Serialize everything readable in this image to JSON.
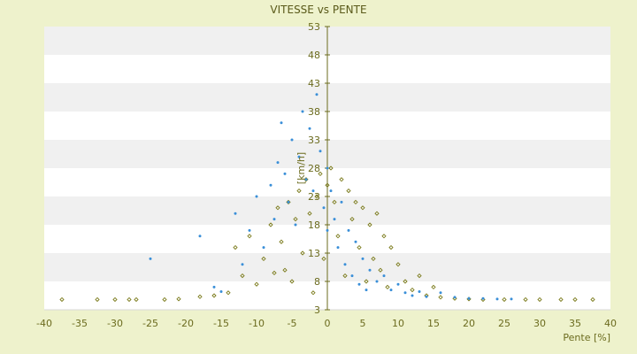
{
  "chart_data": {
    "type": "scatter",
    "title": "VITESSE vs PENTE",
    "xlabel": "Pente [%]",
    "ylabel": "[km/h]",
    "xlim": [
      -40,
      40
    ],
    "ylim": [
      3,
      53
    ],
    "x_ticks": [
      "-40",
      "-35",
      "-30",
      "-25",
      "-20",
      "-15",
      "-10",
      "-5",
      "0",
      "5",
      "10",
      "15",
      "20",
      "25",
      "30",
      "35",
      "40"
    ],
    "y_ticks": [
      "3",
      "8",
      "13",
      "18",
      "23",
      "28",
      "33",
      "38",
      "43",
      "48",
      "53"
    ],
    "grid": true,
    "legend": "none",
    "colors": {
      "background": "#EEF2CC",
      "plot_band_light": "#FFFFFF",
      "plot_band_dark": "#F0F0F0",
      "axis": "#6B6B1E",
      "text": "#6B6B1E"
    },
    "series": [
      {
        "marker": "diamond",
        "color": "#7A7A1A",
        "points": [
          [
            -37.5,
            4.8
          ],
          [
            -32.5,
            4.8
          ],
          [
            -30.0,
            4.8
          ],
          [
            -28.0,
            4.8
          ],
          [
            -27.0,
            4.8
          ],
          [
            -23.0,
            4.8
          ],
          [
            -21.0,
            4.9
          ],
          [
            -18.0,
            5.3
          ],
          [
            -16.0,
            5.5
          ],
          [
            -14.0,
            6.0
          ],
          [
            -13.0,
            14.0
          ],
          [
            -12.0,
            9.0
          ],
          [
            -11.0,
            16.0
          ],
          [
            -10.0,
            7.5
          ],
          [
            -9.0,
            12.0
          ],
          [
            -8.0,
            18.0
          ],
          [
            -7.5,
            9.5
          ],
          [
            -7.0,
            21.0
          ],
          [
            -6.5,
            15.0
          ],
          [
            -6.0,
            10.0
          ],
          [
            -5.5,
            22.0
          ],
          [
            -5.0,
            8.0
          ],
          [
            -4.5,
            19.0
          ],
          [
            -4.0,
            24.0
          ],
          [
            -3.5,
            13.0
          ],
          [
            -3.0,
            26.0
          ],
          [
            -2.5,
            20.0
          ],
          [
            -2.0,
            6.0
          ],
          [
            -1.5,
            23.0
          ],
          [
            -1.0,
            27.0
          ],
          [
            -0.5,
            12.0
          ],
          [
            0.0,
            25.0
          ],
          [
            0.5,
            28.0
          ],
          [
            1.0,
            22.0
          ],
          [
            1.5,
            16.0
          ],
          [
            2.0,
            26.0
          ],
          [
            2.5,
            9.0
          ],
          [
            3.0,
            24.0
          ],
          [
            3.5,
            19.0
          ],
          [
            4.0,
            22.0
          ],
          [
            4.5,
            14.0
          ],
          [
            5.0,
            21.0
          ],
          [
            5.5,
            8.0
          ],
          [
            6.0,
            18.0
          ],
          [
            6.5,
            12.0
          ],
          [
            7.0,
            20.0
          ],
          [
            7.5,
            10.0
          ],
          [
            8.0,
            16.0
          ],
          [
            8.5,
            7.0
          ],
          [
            9.0,
            14.0
          ],
          [
            10.0,
            11.0
          ],
          [
            11.0,
            8.0
          ],
          [
            12.0,
            6.5
          ],
          [
            13.0,
            9.0
          ],
          [
            14.0,
            5.5
          ],
          [
            15.0,
            7.0
          ],
          [
            16.0,
            5.2
          ],
          [
            18.0,
            5.0
          ],
          [
            20.0,
            4.9
          ],
          [
            22.0,
            4.8
          ],
          [
            25.0,
            4.8
          ],
          [
            28.0,
            4.8
          ],
          [
            30.0,
            4.8
          ],
          [
            33.0,
            4.8
          ],
          [
            35.0,
            4.8
          ],
          [
            37.5,
            4.8
          ]
        ]
      },
      {
        "marker": "dot",
        "color": "#3A8FD8",
        "points": [
          [
            -25.0,
            12.0
          ],
          [
            -18.0,
            16.0
          ],
          [
            -16.0,
            7.0
          ],
          [
            -15.0,
            6.2
          ],
          [
            -13.0,
            20.0
          ],
          [
            -12.0,
            11.0
          ],
          [
            -11.0,
            17.0
          ],
          [
            -10.0,
            23.0
          ],
          [
            -9.0,
            14.0
          ],
          [
            -8.0,
            25.0
          ],
          [
            -7.5,
            19.0
          ],
          [
            -7.0,
            29.0
          ],
          [
            -6.5,
            36.0
          ],
          [
            -6.0,
            27.0
          ],
          [
            -5.5,
            22.0
          ],
          [
            -5.0,
            33.0
          ],
          [
            -4.5,
            18.0
          ],
          [
            -4.0,
            30.0
          ],
          [
            -3.5,
            38.0
          ],
          [
            -3.0,
            26.0
          ],
          [
            -2.5,
            35.0
          ],
          [
            -2.0,
            24.0
          ],
          [
            -1.5,
            41.0
          ],
          [
            -1.0,
            31.0
          ],
          [
            -0.5,
            21.0
          ],
          [
            0.0,
            28.0
          ],
          [
            0.0,
            17.0
          ],
          [
            0.5,
            24.0
          ],
          [
            1.0,
            19.0
          ],
          [
            1.5,
            14.0
          ],
          [
            2.0,
            22.0
          ],
          [
            2.5,
            11.0
          ],
          [
            3.0,
            17.0
          ],
          [
            3.5,
            9.0
          ],
          [
            4.0,
            15.0
          ],
          [
            4.5,
            7.5
          ],
          [
            5.0,
            12.0
          ],
          [
            5.5,
            6.5
          ],
          [
            6.0,
            10.0
          ],
          [
            7.0,
            8.0
          ],
          [
            8.0,
            9.0
          ],
          [
            9.0,
            6.5
          ],
          [
            10.0,
            7.5
          ],
          [
            11.0,
            6.0
          ],
          [
            12.0,
            5.5
          ],
          [
            13.0,
            6.2
          ],
          [
            14.0,
            5.3
          ],
          [
            16.0,
            6.0
          ],
          [
            18.0,
            5.2
          ],
          [
            20.0,
            5.0
          ],
          [
            22.0,
            5.0
          ],
          [
            24.0,
            4.9
          ],
          [
            26.0,
            4.9
          ]
        ]
      }
    ]
  }
}
